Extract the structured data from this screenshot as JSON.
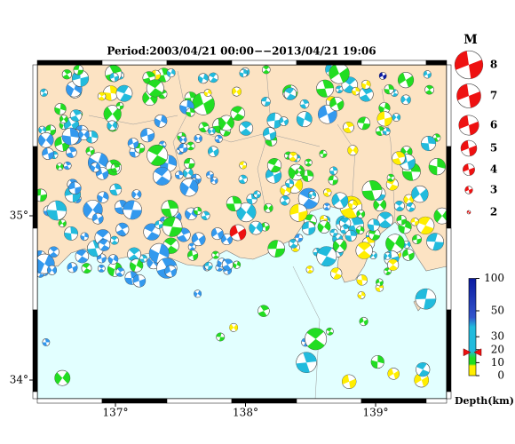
{
  "title": "Period:2003/04/21 00:00−−2013/04/21 19:06",
  "lon_ticks": [
    {
      "value": 137,
      "label": "137°"
    },
    {
      "value": 138,
      "label": "138°"
    },
    {
      "value": 139,
      "label": "139°"
    }
  ],
  "lat_ticks": [
    {
      "value": 35,
      "label": "35°"
    },
    {
      "value": 34,
      "label": "34°"
    }
  ],
  "magnitude_legend": {
    "title": "M",
    "values": [
      8,
      7,
      6,
      5,
      4,
      3,
      2
    ]
  },
  "depth_scale": {
    "label": "Depth(km)",
    "ticks": [
      100,
      50,
      30,
      20,
      10,
      0
    ],
    "marker_depth": 18
  }
}
